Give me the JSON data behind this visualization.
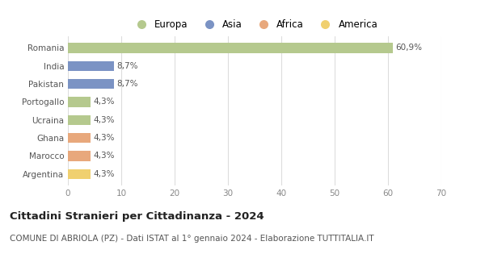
{
  "categories": [
    "Romania",
    "India",
    "Pakistan",
    "Portogallo",
    "Ucraina",
    "Ghana",
    "Marocco",
    "Argentina"
  ],
  "values": [
    60.9,
    8.7,
    8.7,
    4.3,
    4.3,
    4.3,
    4.3,
    4.3
  ],
  "labels": [
    "60,9%",
    "8,7%",
    "8,7%",
    "4,3%",
    "4,3%",
    "4,3%",
    "4,3%",
    "4,3%"
  ],
  "bar_colors": [
    "#b5c98e",
    "#7b93c4",
    "#7b93c4",
    "#b5c98e",
    "#b5c98e",
    "#e8a87c",
    "#e8a87c",
    "#f0d070"
  ],
  "legend_labels": [
    "Europa",
    "Asia",
    "Africa",
    "America"
  ],
  "legend_colors": [
    "#b5c98e",
    "#7b93c4",
    "#e8a87c",
    "#f0d070"
  ],
  "xlim": [
    0,
    70
  ],
  "xticks": [
    0,
    10,
    20,
    30,
    40,
    50,
    60,
    70
  ],
  "title": "Cittadini Stranieri per Cittadinanza - 2024",
  "subtitle": "COMUNE DI ABRIOLA (PZ) - Dati ISTAT al 1° gennaio 2024 - Elaborazione TUTTITALIA.IT",
  "title_fontsize": 9.5,
  "subtitle_fontsize": 7.5,
  "background_color": "#ffffff",
  "grid_color": "#dddddd",
  "label_fontsize": 7.5,
  "tick_fontsize": 7.5,
  "legend_fontsize": 8.5
}
